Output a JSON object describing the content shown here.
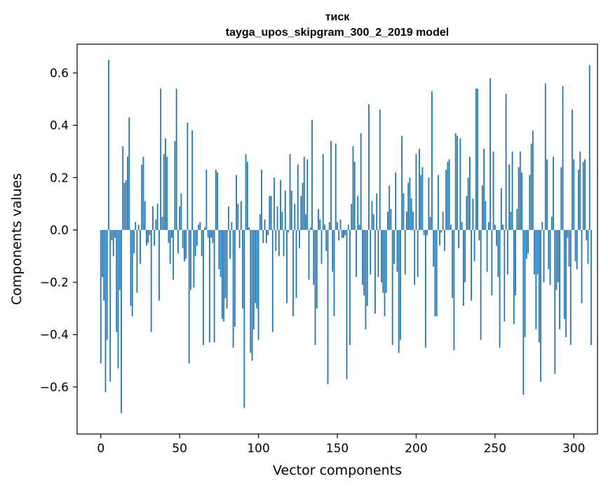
{
  "chart_data": {
    "type": "bar",
    "title": "тиск",
    "subtitle": "tayga_upos_skipgram_300_2_2019 model",
    "xlabel": "Vector components",
    "ylabel": "Components values",
    "xlim": [
      -15,
      315
    ],
    "ylim": [
      -0.78,
      0.71
    ],
    "xticks": [
      0,
      50,
      100,
      150,
      200,
      250,
      300
    ],
    "xtick_labels": [
      "0",
      "50",
      "100",
      "150",
      "200",
      "250",
      "300"
    ],
    "yticks": [
      -0.6,
      -0.4,
      -0.2,
      0.0,
      0.2,
      0.4,
      0.6
    ],
    "ytick_labels": [
      "−0.6",
      "−0.4",
      "−0.2",
      "0.0",
      "0.2",
      "0.4",
      "0.6"
    ],
    "bar_color": "#1f77b4",
    "values": [
      -0.51,
      -0.18,
      -0.27,
      -0.62,
      -0.42,
      0.65,
      -0.58,
      -0.04,
      -0.1,
      -0.03,
      -0.39,
      -0.53,
      -0.23,
      -0.7,
      0.32,
      0.18,
      0.19,
      0.28,
      0.43,
      -0.29,
      -0.33,
      -0.09,
      0.03,
      -0.24,
      0.02,
      -0.13,
      0.25,
      0.28,
      0.11,
      -0.06,
      -0.05,
      -0.02,
      -0.39,
      0.09,
      -0.06,
      0.04,
      0.1,
      -0.27,
      0.54,
      0.05,
      0.29,
      0.35,
      0.28,
      -0.05,
      -0.13,
      -0.03,
      -0.19,
      0.34,
      0.54,
      -0.09,
      0.09,
      0.14,
      -0.07,
      -0.12,
      -0.11,
      0.41,
      -0.51,
      -0.23,
      0.38,
      -0.22,
      -0.1,
      -0.06,
      0.02,
      0.03,
      -0.1,
      -0.44,
      0.01,
      0.23,
      -0.03,
      -0.43,
      -0.03,
      -0.05,
      -0.43,
      0.23,
      0.22,
      -0.15,
      -0.18,
      -0.34,
      -0.35,
      -0.26,
      -0.3,
      0.09,
      -0.11,
      0.03,
      -0.45,
      -0.37,
      0.21,
      0.1,
      -0.07,
      0.11,
      -0.3,
      -0.68,
      0.29,
      0.26,
      0.01,
      -0.47,
      -0.5,
      -0.38,
      -0.28,
      -0.3,
      -0.42,
      0.06,
      0.23,
      -0.05,
      0.04,
      -0.05,
      -0.02,
      0.13,
      0.13,
      -0.39,
      0.2,
      -0.08,
      0.09,
      -0.1,
      0.19,
      0.07,
      -0.1,
      0.15,
      -0.28,
      -0.01,
      0.29,
      0.15,
      -0.33,
      0.1,
      -0.26,
      0.25,
      -0.07,
      0.13,
      0.18,
      0.28,
      0.06,
      0.27,
      -0.19,
      0.01,
      0.42,
      -0.21,
      -0.44,
      -0.3,
      0.08,
      0.04,
      -0.13,
      0.29,
      0.02,
      -0.08,
      -0.59,
      0.03,
      0.34,
      -0.16,
      -0.33,
      0.33,
      0.03,
      -0.04,
      0.04,
      -0.03,
      -0.03,
      -0.02,
      -0.57,
      0.02,
      -0.44,
      0.1,
      0.32,
      0.26,
      -0.18,
      0.13,
      0.02,
      0.37,
      -0.21,
      -0.25,
      -0.38,
      -0.29,
      0.48,
      -0.17,
      0.11,
      0.06,
      -0.32,
      0.14,
      -0.18,
      0.46,
      -0.2,
      -0.24,
      -0.33,
      -0.24,
      0.07,
      0.17,
      0.08,
      -0.44,
      -0.13,
      0.22,
      -0.16,
      -0.47,
      -0.42,
      0.36,
      0.14,
      -0.17,
      0.07,
      0.18,
      0.2,
      0.12,
      0.07,
      -0.21,
      0.29,
      -0.18,
      0.31,
      0.21,
      0.24,
      -0.02,
      -0.45,
      -0.02,
      0.2,
      0.05,
      0.53,
      -0.14,
      -0.33,
      -0.33,
      0.21,
      -0.06,
      -0.01,
      0.07,
      -0.08,
      0.23,
      0.26,
      0.27,
      0.02,
      -0.26,
      -0.46,
      0.37,
      0.36,
      -0.07,
      0.35,
      0.03,
      -0.29,
      -0.2,
      0.13,
      0.2,
      0.28,
      -0.27,
      0.12,
      -0.12,
      0.54,
      0.54,
      -0.04,
      -0.42,
      0.17,
      0.31,
      0.11,
      -0.16,
      0.03,
      0.58,
      -0.25,
      0.3,
      0.02,
      -0.06,
      -0.18,
      -0.45,
      0.16,
      0.02,
      -0.35,
      0.52,
      -0.17,
      0.25,
      0.07,
      0.3,
      -0.36,
      -0.25,
      0.08,
      0.24,
      0.3,
      0.22,
      -0.63,
      -0.41,
      -0.11,
      -0.09,
      0.21,
      0.33,
      0.38,
      -0.17,
      -0.38,
      -0.17,
      -0.43,
      -0.58,
      0.03,
      -0.2,
      0.56,
      0.27,
      -0.15,
      -0.21,
      0.05,
      0.28,
      -0.55,
      -0.23,
      -0.2,
      -0.38,
      0.24,
      0.55,
      -0.34,
      -0.41,
      -0.03,
      -0.14,
      -0.44,
      0.46,
      0.27,
      -0.12,
      -0.15,
      0.23,
      0.3,
      -0.28,
      0.26,
      0.27,
      -0.04,
      -0.13,
      0.63,
      -0.44
    ]
  }
}
